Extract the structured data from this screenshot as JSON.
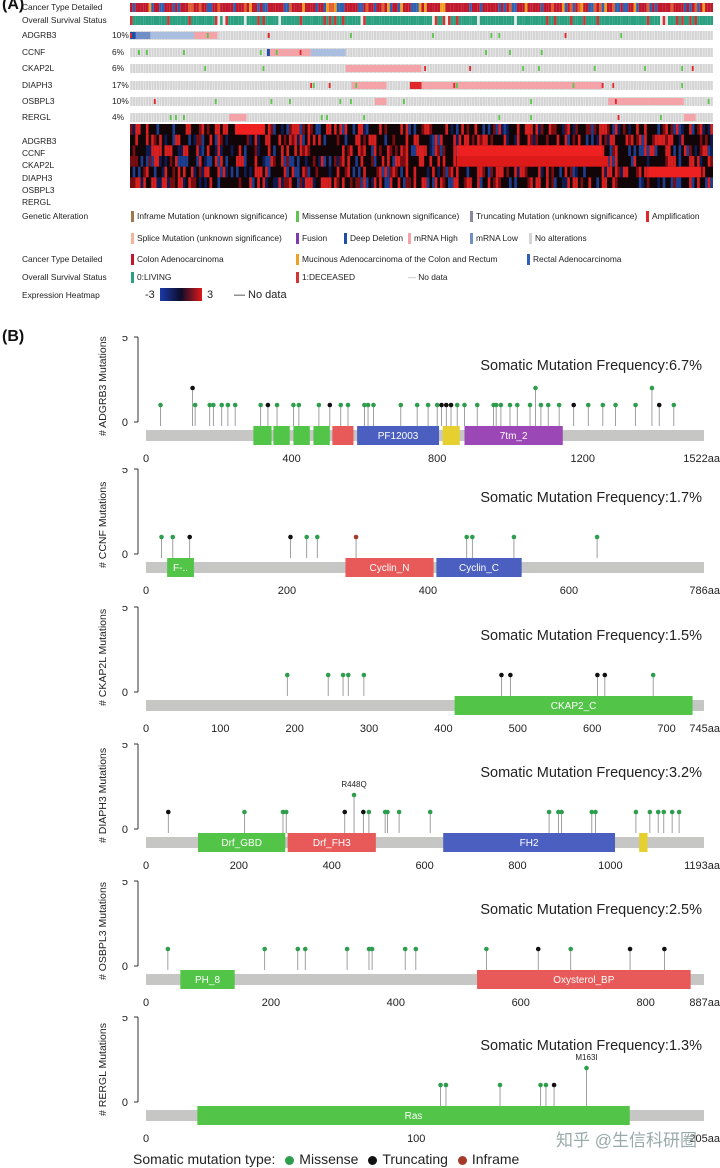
{
  "panelA": {
    "label": "(A)",
    "rows": [
      {
        "name": "Cancer Type Detailed",
        "pct": "",
        "kind": "cancer"
      },
      {
        "name": "Overall Survival Status",
        "pct": "",
        "kind": "survival"
      },
      {
        "name": "ADGRB3",
        "pct": "10%",
        "kind": "alt"
      },
      {
        "name": "CCNF",
        "pct": "6%",
        "kind": "alt"
      },
      {
        "name": "CKAP2L",
        "pct": "6%",
        "kind": "alt"
      },
      {
        "name": "DIAPH3",
        "pct": "17%",
        "kind": "alt"
      },
      {
        "name": "OSBPL3",
        "pct": "10%",
        "kind": "alt"
      },
      {
        "name": "RERGL",
        "pct": "4%",
        "kind": "alt"
      }
    ],
    "heatmap_rows": [
      "ADGRB3",
      "CCNF",
      "CKAP2L",
      "DIAPH3",
      "OSBPL3",
      "RERGL"
    ],
    "legend": {
      "genetic_alteration_title": "Genetic Alteration",
      "genetic_alteration": [
        {
          "label": "Inframe Mutation (unknown significance)",
          "color": "#9e7a4a"
        },
        {
          "label": "Missense Mutation (unknown significance)",
          "color": "#5ec44e"
        },
        {
          "label": "Truncating Mutation (unknown significance)",
          "color": "#8a8a9c"
        },
        {
          "label": "Amplification",
          "color": "#e0282c"
        },
        {
          "label": "Splice Mutation (unknown significance)",
          "color": "#f2b49c"
        },
        {
          "label": "Fusion",
          "color": "#7d3bb0"
        },
        {
          "label": "Deep Deletion",
          "color": "#1f4ea8"
        },
        {
          "label": "mRNA High",
          "color": "#f4a4a8"
        },
        {
          "label": "mRNA Low",
          "color": "#6f8fc6"
        },
        {
          "label": "No alterations",
          "color": "#d4d4d4"
        }
      ],
      "cancer_type_title": "Cancer Type Detailed",
      "cancer_type": [
        {
          "label": "Colon Adenocarcinoma",
          "color": "#c0182c"
        },
        {
          "label": "Mucinous Adenocarcinoma of the Colon and Rectum",
          "color": "#f0a020"
        },
        {
          "label": "Rectal Adenocarcinoma",
          "color": "#3060b0"
        }
      ],
      "survival_title": "Overall Survival Status",
      "survival": [
        {
          "label": "0:LIVING",
          "color": "#2aa080"
        },
        {
          "label": "1:DECEASED",
          "color": "#d33434"
        },
        {
          "label": "No data",
          "color": "#bbbbbb"
        }
      ],
      "heatmap_title": "Expression Heatmap",
      "heatmap_min": "-3",
      "heatmap_max": "3",
      "heatmap_nodata": "No data"
    }
  },
  "panelB": {
    "label": "(B)",
    "mutation_type_title": "Somatic mutation type:",
    "mutation_types": [
      {
        "label": "Missense",
        "color": "#2e9e4e"
      },
      {
        "label": "Truncating",
        "color": "#111111"
      },
      {
        "label": "Inframe",
        "color": "#a33a2a"
      }
    ],
    "watermark": "知乎 @生信科研圈"
  },
  "chart_data": [
    {
      "type": "lollipop",
      "gene": "ADGRB3",
      "ylabel": "# ADGRB3 Mutations",
      "ylim": [
        0,
        5
      ],
      "yticks": [
        0,
        5
      ],
      "freq_text": "Somatic Mutation Frequency:6.7%",
      "length": 1522,
      "length_label": "1522aa",
      "xticks": [
        0,
        400,
        800,
        1200
      ],
      "domains": [
        {
          "name": "",
          "start": 295,
          "end": 345,
          "color": "#52c447"
        },
        {
          "name": "",
          "start": 350,
          "end": 395,
          "color": "#52c447"
        },
        {
          "name": "",
          "start": 405,
          "end": 450,
          "color": "#52c447"
        },
        {
          "name": "",
          "start": 460,
          "end": 505,
          "color": "#52c447"
        },
        {
          "name": "",
          "start": 512,
          "end": 570,
          "color": "#e85a5a"
        },
        {
          "name": "PF12003",
          "start": 580,
          "end": 805,
          "color": "#4b5fc0"
        },
        {
          "name": "",
          "start": 815,
          "end": 862,
          "color": "#e5d030"
        },
        {
          "name": "7tm_2",
          "start": 875,
          "end": 1145,
          "color": "#9b47b5"
        }
      ],
      "mutations": [
        {
          "pos": 40,
          "count": 1,
          "type": "missense"
        },
        {
          "pos": 128,
          "count": 2,
          "type": "truncating"
        },
        {
          "pos": 135,
          "count": 1,
          "type": "missense"
        },
        {
          "pos": 175,
          "count": 1,
          "type": "missense"
        },
        {
          "pos": 185,
          "count": 1,
          "type": "missense"
        },
        {
          "pos": 208,
          "count": 1,
          "type": "missense"
        },
        {
          "pos": 225,
          "count": 1,
          "type": "missense"
        },
        {
          "pos": 245,
          "count": 1,
          "type": "missense"
        },
        {
          "pos": 315,
          "count": 1,
          "type": "missense"
        },
        {
          "pos": 335,
          "count": 1,
          "type": "truncating"
        },
        {
          "pos": 360,
          "count": 1,
          "type": "missense"
        },
        {
          "pos": 405,
          "count": 1,
          "type": "missense"
        },
        {
          "pos": 420,
          "count": 1,
          "type": "missense"
        },
        {
          "pos": 475,
          "count": 1,
          "type": "missense"
        },
        {
          "pos": 505,
          "count": 1,
          "type": "truncating"
        },
        {
          "pos": 535,
          "count": 1,
          "type": "missense"
        },
        {
          "pos": 555,
          "count": 1,
          "type": "missense"
        },
        {
          "pos": 600,
          "count": 1,
          "type": "missense"
        },
        {
          "pos": 610,
          "count": 1,
          "type": "missense"
        },
        {
          "pos": 625,
          "count": 1,
          "type": "missense"
        },
        {
          "pos": 700,
          "count": 1,
          "type": "missense"
        },
        {
          "pos": 745,
          "count": 1,
          "type": "missense"
        },
        {
          "pos": 775,
          "count": 1,
          "type": "missense"
        },
        {
          "pos": 800,
          "count": 1,
          "type": "missense"
        },
        {
          "pos": 812,
          "count": 1,
          "type": "truncating"
        },
        {
          "pos": 825,
          "count": 1,
          "type": "truncating"
        },
        {
          "pos": 838,
          "count": 1,
          "type": "truncating"
        },
        {
          "pos": 855,
          "count": 1,
          "type": "missense"
        },
        {
          "pos": 875,
          "count": 1,
          "type": "missense"
        },
        {
          "pos": 910,
          "count": 1,
          "type": "missense"
        },
        {
          "pos": 955,
          "count": 1,
          "type": "missense"
        },
        {
          "pos": 962,
          "count": 1,
          "type": "missense"
        },
        {
          "pos": 975,
          "count": 1,
          "type": "missense"
        },
        {
          "pos": 1000,
          "count": 1,
          "type": "missense"
        },
        {
          "pos": 1020,
          "count": 1,
          "type": "missense"
        },
        {
          "pos": 1055,
          "count": 1,
          "type": "missense"
        },
        {
          "pos": 1070,
          "count": 2,
          "type": "missense"
        },
        {
          "pos": 1085,
          "count": 1,
          "type": "missense"
        },
        {
          "pos": 1105,
          "count": 1,
          "type": "missense"
        },
        {
          "pos": 1135,
          "count": 1,
          "type": "missense"
        },
        {
          "pos": 1175,
          "count": 1,
          "type": "truncating"
        },
        {
          "pos": 1215,
          "count": 1,
          "type": "missense"
        },
        {
          "pos": 1255,
          "count": 1,
          "type": "missense"
        },
        {
          "pos": 1290,
          "count": 1,
          "type": "missense"
        },
        {
          "pos": 1345,
          "count": 1,
          "type": "missense"
        },
        {
          "pos": 1390,
          "count": 2,
          "type": "missense"
        },
        {
          "pos": 1410,
          "count": 1,
          "type": "truncating"
        },
        {
          "pos": 1450,
          "count": 1,
          "type": "missense"
        }
      ],
      "annotations": []
    },
    {
      "type": "lollipop",
      "gene": "CCNF",
      "ylabel": "# CCNF Mutations",
      "ylim": [
        0,
        5
      ],
      "yticks": [
        0,
        5
      ],
      "freq_text": "Somatic Mutation Frequency:1.7%",
      "length": 786,
      "length_label": "786aa",
      "xticks": [
        0,
        200,
        400,
        600
      ],
      "domains": [
        {
          "name": "F-..",
          "start": 30,
          "end": 68,
          "color": "#52c447"
        },
        {
          "name": "Cyclin_N",
          "start": 283,
          "end": 408,
          "color": "#e85a5a"
        },
        {
          "name": "Cyclin_C",
          "start": 412,
          "end": 533,
          "color": "#4b5fc0"
        }
      ],
      "mutations": [
        {
          "pos": 22,
          "count": 1,
          "type": "missense"
        },
        {
          "pos": 38,
          "count": 1,
          "type": "missense"
        },
        {
          "pos": 62,
          "count": 1,
          "type": "truncating"
        },
        {
          "pos": 205,
          "count": 1,
          "type": "truncating"
        },
        {
          "pos": 228,
          "count": 1,
          "type": "missense"
        },
        {
          "pos": 243,
          "count": 1,
          "type": "missense"
        },
        {
          "pos": 298,
          "count": 1,
          "type": "inframe"
        },
        {
          "pos": 455,
          "count": 1,
          "type": "missense"
        },
        {
          "pos": 463,
          "count": 1,
          "type": "missense"
        },
        {
          "pos": 522,
          "count": 1,
          "type": "missense"
        },
        {
          "pos": 640,
          "count": 1,
          "type": "missense"
        }
      ],
      "annotations": []
    },
    {
      "type": "lollipop",
      "gene": "CKAP2L",
      "ylabel": "# CKAP2L Mutations",
      "ylim": [
        0,
        5
      ],
      "yticks": [
        0,
        5
      ],
      "freq_text": "Somatic Mutation Frequency:1.5%",
      "length": 745,
      "length_label": "745aa",
      "xticks": [
        0,
        100,
        200,
        300,
        400,
        500,
        600,
        700
      ],
      "domains": [
        {
          "name": "CKAP2_C",
          "start": 415,
          "end": 735,
          "color": "#52c447"
        }
      ],
      "mutations": [
        {
          "pos": 190,
          "count": 1,
          "type": "missense"
        },
        {
          "pos": 245,
          "count": 1,
          "type": "missense"
        },
        {
          "pos": 265,
          "count": 1,
          "type": "missense"
        },
        {
          "pos": 272,
          "count": 1,
          "type": "missense"
        },
        {
          "pos": 293,
          "count": 1,
          "type": "missense"
        },
        {
          "pos": 478,
          "count": 1,
          "type": "truncating"
        },
        {
          "pos": 490,
          "count": 1,
          "type": "truncating"
        },
        {
          "pos": 607,
          "count": 1,
          "type": "truncating"
        },
        {
          "pos": 617,
          "count": 1,
          "type": "truncating"
        },
        {
          "pos": 682,
          "count": 1,
          "type": "missense"
        }
      ],
      "annotations": []
    },
    {
      "type": "lollipop",
      "gene": "DIAPH3",
      "ylabel": "# DIAPH3 Mutations",
      "ylim": [
        0,
        5
      ],
      "yticks": [
        0,
        5
      ],
      "freq_text": "Somatic Mutation Frequency:3.2%",
      "length": 1193,
      "length_label": "1193aa",
      "xticks": [
        0,
        200,
        400,
        600,
        800,
        1000
      ],
      "domains": [
        {
          "name": "Drf_GBD",
          "start": 112,
          "end": 300,
          "color": "#52c447"
        },
        {
          "name": "Drf_FH3",
          "start": 305,
          "end": 495,
          "color": "#e85a5a"
        },
        {
          "name": "FH2",
          "start": 640,
          "end": 1010,
          "color": "#4b5fc0"
        },
        {
          "name": "",
          "start": 1062,
          "end": 1080,
          "color": "#e5d030"
        }
      ],
      "mutations": [
        {
          "pos": 48,
          "count": 1,
          "type": "truncating"
        },
        {
          "pos": 212,
          "count": 1,
          "type": "missense"
        },
        {
          "pos": 295,
          "count": 1,
          "type": "missense"
        },
        {
          "pos": 302,
          "count": 1,
          "type": "missense"
        },
        {
          "pos": 428,
          "count": 1,
          "type": "truncating"
        },
        {
          "pos": 448,
          "count": 2,
          "type": "missense"
        },
        {
          "pos": 468,
          "count": 1,
          "type": "truncating"
        },
        {
          "pos": 480,
          "count": 1,
          "type": "missense"
        },
        {
          "pos": 515,
          "count": 1,
          "type": "missense"
        },
        {
          "pos": 520,
          "count": 1,
          "type": "missense"
        },
        {
          "pos": 545,
          "count": 1,
          "type": "missense"
        },
        {
          "pos": 612,
          "count": 1,
          "type": "missense"
        },
        {
          "pos": 868,
          "count": 1,
          "type": "missense"
        },
        {
          "pos": 888,
          "count": 1,
          "type": "missense"
        },
        {
          "pos": 895,
          "count": 1,
          "type": "missense"
        },
        {
          "pos": 960,
          "count": 1,
          "type": "missense"
        },
        {
          "pos": 968,
          "count": 1,
          "type": "missense"
        },
        {
          "pos": 1055,
          "count": 1,
          "type": "missense"
        },
        {
          "pos": 1085,
          "count": 1,
          "type": "missense"
        },
        {
          "pos": 1103,
          "count": 1,
          "type": "missense"
        },
        {
          "pos": 1115,
          "count": 1,
          "type": "missense"
        },
        {
          "pos": 1133,
          "count": 1,
          "type": "missense"
        },
        {
          "pos": 1148,
          "count": 1,
          "type": "missense"
        }
      ],
      "annotations": [
        {
          "pos": 448,
          "label": "R448Q"
        }
      ]
    },
    {
      "type": "lollipop",
      "gene": "OSBPL3",
      "ylabel": "# OSBPL3 Mutations",
      "ylim": [
        0,
        5
      ],
      "yticks": [
        0,
        5
      ],
      "freq_text": "Somatic Mutation Frequency:2.5%",
      "length": 887,
      "length_label": "887aa",
      "xticks": [
        0,
        200,
        400,
        600,
        800
      ],
      "domains": [
        {
          "name": "PH_8",
          "start": 55,
          "end": 142,
          "color": "#52c447"
        },
        {
          "name": "Oxysterol_BP",
          "start": 530,
          "end": 872,
          "color": "#e85a5a"
        }
      ],
      "mutations": [
        {
          "pos": 35,
          "count": 1,
          "type": "missense"
        },
        {
          "pos": 190,
          "count": 1,
          "type": "missense"
        },
        {
          "pos": 243,
          "count": 1,
          "type": "missense"
        },
        {
          "pos": 255,
          "count": 1,
          "type": "missense"
        },
        {
          "pos": 322,
          "count": 1,
          "type": "missense"
        },
        {
          "pos": 357,
          "count": 1,
          "type": "missense"
        },
        {
          "pos": 362,
          "count": 1,
          "type": "missense"
        },
        {
          "pos": 415,
          "count": 1,
          "type": "missense"
        },
        {
          "pos": 432,
          "count": 1,
          "type": "missense"
        },
        {
          "pos": 545,
          "count": 1,
          "type": "missense"
        },
        {
          "pos": 628,
          "count": 1,
          "type": "truncating"
        },
        {
          "pos": 680,
          "count": 1,
          "type": "missense"
        },
        {
          "pos": 775,
          "count": 1,
          "type": "truncating"
        },
        {
          "pos": 830,
          "count": 1,
          "type": "truncating"
        }
      ],
      "annotations": []
    },
    {
      "type": "lollipop",
      "gene": "RERGL",
      "ylabel": "# RERGL Mutations",
      "ylim": [
        0,
        5
      ],
      "yticks": [
        0,
        5
      ],
      "freq_text": "Somatic Mutation Frequency:1.3%",
      "length": 205,
      "length_label": "205aa",
      "xticks": [
        0,
        100
      ],
      "domains": [
        {
          "name": "Ras",
          "start": 19,
          "end": 179,
          "color": "#52c447"
        }
      ],
      "mutations": [
        {
          "pos": 109,
          "count": 1,
          "type": "missense"
        },
        {
          "pos": 111,
          "count": 1,
          "type": "missense"
        },
        {
          "pos": 131,
          "count": 1,
          "type": "missense"
        },
        {
          "pos": 146,
          "count": 1,
          "type": "missense"
        },
        {
          "pos": 148,
          "count": 1,
          "type": "missense"
        },
        {
          "pos": 151,
          "count": 1,
          "type": "truncating"
        },
        {
          "pos": 163,
          "count": 2,
          "type": "missense"
        }
      ],
      "annotations": [
        {
          "pos": 163,
          "label": "M163I"
        }
      ]
    }
  ]
}
